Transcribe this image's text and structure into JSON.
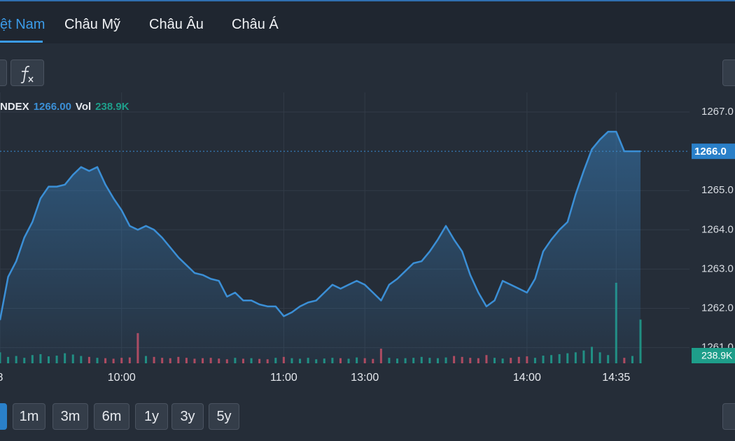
{
  "tabs": [
    "ệt Nam",
    "Châu Mỹ",
    "Châu Âu",
    "Châu Á"
  ],
  "periods": [
    "1m",
    "3m",
    "6m",
    "1y",
    "3y",
    "5y"
  ],
  "chart_data": {
    "type": "line",
    "legend": {
      "symbol": "NDEX",
      "price": "1266.00",
      "vol_label": "Vol",
      "vol": "238.9K"
    },
    "last_price_label": "1266.0",
    "categories": [
      "8",
      null,
      null,
      null,
      null,
      null,
      null,
      null,
      null,
      null,
      null,
      null,
      null,
      null,
      null,
      "10:00",
      null,
      null,
      null,
      null,
      null,
      null,
      null,
      null,
      null,
      null,
      null,
      null,
      null,
      null,
      null,
      null,
      null,
      null,
      null,
      "11:00",
      null,
      null,
      null,
      null,
      null,
      null,
      null,
      null,
      null,
      "13:00",
      null,
      null,
      null,
      null,
      null,
      null,
      null,
      null,
      null,
      null,
      null,
      null,
      null,
      null,
      null,
      null,
      null,
      null,
      null,
      "14:00",
      null,
      null,
      null,
      null,
      null,
      null,
      null,
      null,
      null,
      null,
      "14:35",
      null,
      null,
      null
    ],
    "series": [
      {
        "name": "NDEX",
        "color": "#3b8fd6",
        "values": [
          1261.7,
          1262.8,
          1263.2,
          1263.8,
          1264.2,
          1264.8,
          1265.1,
          1265.1,
          1265.15,
          1265.4,
          1265.6,
          1265.5,
          1265.6,
          1265.15,
          1264.8,
          1264.5,
          1264.1,
          1264.0,
          1264.1,
          1264.0,
          1263.8,
          1263.55,
          1263.3,
          1263.1,
          1262.9,
          1262.85,
          1262.75,
          1262.7,
          1262.3,
          1262.4,
          1262.2,
          1262.2,
          1262.1,
          1262.05,
          1262.05,
          1261.8,
          1261.9,
          1262.05,
          1262.15,
          1262.2,
          1262.4,
          1262.6,
          1262.5,
          1262.6,
          1262.7,
          1262.6,
          1262.4,
          1262.2,
          1262.6,
          1262.75,
          1262.95,
          1263.15,
          1263.2,
          1263.45,
          1263.75,
          1264.1,
          1263.75,
          1263.45,
          1262.85,
          1262.4,
          1262.05,
          1262.2,
          1262.7,
          1262.6,
          1262.5,
          1262.4,
          1262.75,
          1263.45,
          1263.75,
          1264.0,
          1264.2,
          1264.9,
          1265.5,
          1266.05,
          1266.3,
          1266.5,
          1266.5,
          1266.0,
          1266.0,
          1266.0
        ]
      },
      {
        "name": "Vol",
        "axis": "y2",
        "up_color": "#1f8f7e",
        "down_color": "#b5475a",
        "values": [
          60,
          35,
          40,
          30,
          45,
          50,
          38,
          42,
          55,
          48,
          40,
          35,
          30,
          28,
          25,
          30,
          32,
          165,
          40,
          35,
          30,
          28,
          35,
          30,
          25,
          28,
          30,
          26,
          22,
          30,
          25,
          28,
          24,
          22,
          30,
          35,
          28,
          25,
          30,
          22,
          26,
          30,
          28,
          25,
          32,
          28,
          24,
          80,
          30,
          26,
          28,
          30,
          35,
          30,
          28,
          32,
          40,
          35,
          30,
          28,
          45,
          30,
          26,
          30,
          35,
          38,
          30,
          42,
          45,
          50,
          55,
          60,
          70,
          90,
          60,
          45,
          440,
          30,
          40,
          238.9
        ]
      }
    ],
    "ylim": [
      1260.6,
      1267.5
    ],
    "yticks": [
      {
        "value": 1261,
        "label": "1261.0"
      },
      {
        "value": 1262,
        "label": "1262.0"
      },
      {
        "value": 1263,
        "label": "1263.0"
      },
      {
        "value": 1264,
        "label": "1264.0"
      },
      {
        "value": 1265,
        "label": "1265.0"
      },
      {
        "value": 1267,
        "label": "1267.0"
      }
    ],
    "y2lim": [
      0,
      1480
    ],
    "grid": true
  }
}
